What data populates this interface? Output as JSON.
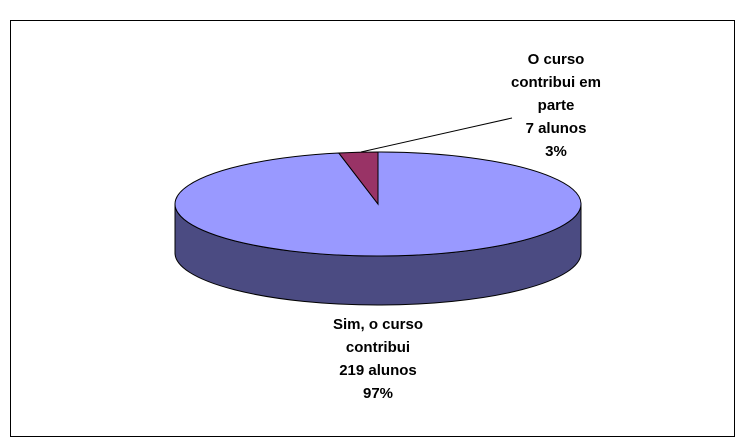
{
  "chart_data": {
    "type": "pie",
    "categories": [
      "Sim, o curso contribui",
      "O curso contribui em parte"
    ],
    "values": [
      219,
      7
    ],
    "value_labels": [
      "219 alunos",
      "7 alunos"
    ],
    "percent_labels": [
      "97%",
      "3%"
    ],
    "colors": [
      "#9999ff",
      "#993366"
    ],
    "side_colors": [
      "#4b4b82",
      "#5a1e3c"
    ]
  }
}
